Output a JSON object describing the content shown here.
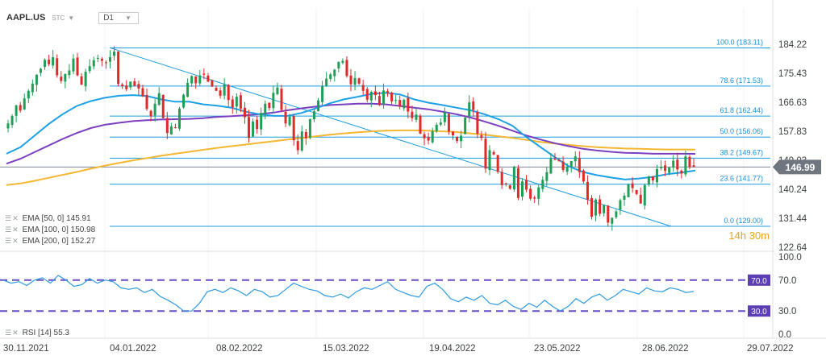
{
  "header": {
    "symbol": "AAPL.US",
    "type": "STC",
    "timeframe": "D1"
  },
  "indicators": [
    {
      "label": "EMA [50, 0] 145.91",
      "color": "#1ea0e6"
    },
    {
      "label": "EMA [100, 0] 150.98",
      "color": "#7b3fbf"
    },
    {
      "label": "EMA [200, 0] 152.27",
      "color": "#f5b731"
    }
  ],
  "rsi_label": "RSI [14] 55.3",
  "countdown": "14h 30m",
  "chart_data": {
    "type": "candlestick",
    "price_axis": {
      "ticks": [
        "184.22",
        "175.43",
        "166.63",
        "157.83",
        "149.03",
        "140.24",
        "131.44",
        "122.64"
      ]
    },
    "current_price": "146.99",
    "fib_levels": [
      {
        "label": "100.0 (183.11)",
        "value": 183.11
      },
      {
        "label": "78.6 (171.53)",
        "value": 171.53
      },
      {
        "label": "61.8 (162.44)",
        "value": 162.44
      },
      {
        "label": "50.0 (156.06)",
        "value": 156.06
      },
      {
        "label": "38.2 (149.67)",
        "value": 149.67
      },
      {
        "label": "23.6 (141.77)",
        "value": 141.77
      },
      {
        "label": "0.0 (129.00)",
        "value": 129.0
      }
    ],
    "x_axis": {
      "labels": [
        "30.11.2021",
        "04.01.2022",
        "08.02.2022",
        "15.03.2022",
        "19.04.2022",
        "23.05.2022",
        "28.06.2022",
        "29.07.2022"
      ]
    },
    "candles_close_approx": [
      160.2,
      162.5,
      165.7,
      164.1,
      167.8,
      170.1,
      172.3,
      175.0,
      176.8,
      179.5,
      178.2,
      180.3,
      174.8,
      173.1,
      175.2,
      176.3,
      179.9,
      174.8,
      172.0,
      175.9,
      177.6,
      179.4,
      180.1,
      179.2,
      178.5,
      180.3,
      182.0,
      172.2,
      171.5,
      170.6,
      172.9,
      171.6,
      170.8,
      168.5,
      164.6,
      162.4,
      166.2,
      169.4,
      161.8,
      157.3,
      159.3,
      158.8,
      164.7,
      168.9,
      172.5,
      174.6,
      172.4,
      174.8,
      175.0,
      172.9,
      171.4,
      170.1,
      168.6,
      172.0,
      167.3,
      165.1,
      168.3,
      164.7,
      162.1,
      155.8,
      160.8,
      158.5,
      163.4,
      166.2,
      164.9,
      169.5,
      171.1,
      164.3,
      160.2,
      162.2,
      155.1,
      152.1,
      157.8,
      155.7,
      161.5,
      163.9,
      167.2,
      171.5,
      173.8,
      175.1,
      176.5,
      178.9,
      179.2,
      174.6,
      172.1,
      174.0,
      172.3,
      170.1,
      167.4,
      169.8,
      168.8,
      165.8,
      170.2,
      169.5,
      166.9,
      167.3,
      165.3,
      167.4,
      163.8,
      161.8,
      162.9,
      157.1,
      155.7,
      155.0,
      157.9,
      159.8,
      160.5,
      163.6,
      157.8,
      156.6,
      154.9,
      156.5,
      162.0,
      166.6,
      164.3,
      157.1,
      155.8,
      146.5,
      152.1,
      150.8,
      145.5,
      141.5,
      141.9,
      140.4,
      147.1,
      137.6,
      142.6,
      140.1,
      137.4,
      137.4,
      140.8,
      143.1,
      145.4,
      149.6,
      149.2,
      148.7,
      146.1,
      147.0,
      148.8,
      150.2,
      145.4,
      142.6,
      137.1,
      131.9,
      137.1,
      132.8,
      135.4,
      130.1,
      131.6,
      133.5,
      136.9,
      138.3,
      141.7,
      140.6,
      138.8,
      135.9,
      141.5,
      144.1,
      142.9,
      146.4,
      147.0,
      145.8,
      146.8,
      148.9,
      146.2,
      145.0,
      150.2,
      147.0,
      146.99
    ],
    "ema50_approx": [
      151.0,
      153.0,
      156.5,
      160.0,
      163.0,
      165.5,
      167.0,
      168.0,
      168.6,
      168.8,
      168.5,
      167.5,
      166.8,
      166.8,
      166.0,
      165.6,
      165.0,
      163.8,
      163.0,
      162.5,
      162.5,
      163.4,
      164.8,
      166.3,
      167.5,
      168.3,
      169.2,
      169.5,
      169.0,
      167.5,
      166.5,
      165.8,
      165.0,
      164.2,
      163.0,
      161.5,
      159.5,
      156.0,
      153.0,
      150.0,
      147.2,
      145.5,
      144.5,
      143.8,
      143.2,
      143.5,
      144.0,
      144.8,
      145.3,
      145.91
    ],
    "ema100_approx": [
      148.0,
      149.5,
      151.5,
      153.5,
      155.5,
      157.3,
      158.8,
      159.8,
      160.4,
      160.9,
      161.2,
      161.4,
      161.5,
      161.6,
      161.8,
      162.2,
      162.4,
      162.7,
      163.0,
      163.5,
      164.2,
      164.8,
      165.3,
      165.8,
      166.0,
      166.2,
      166.2,
      166.0,
      165.5,
      165.0,
      164.5,
      163.8,
      163.0,
      162.0,
      160.8,
      159.5,
      158.0,
      156.5,
      155.3,
      154.2,
      153.3,
      152.5,
      152.0,
      151.6,
      151.3,
      151.2,
      151.0,
      151.0,
      151.0,
      150.98
    ],
    "ema200_approx": [
      141.5,
      142.0,
      142.8,
      143.7,
      144.6,
      145.5,
      146.5,
      147.4,
      148.2,
      149.0,
      149.7,
      150.4,
      151.0,
      151.6,
      152.2,
      152.8,
      153.3,
      153.8,
      154.3,
      154.8,
      155.3,
      155.8,
      156.3,
      156.8,
      157.2,
      157.5,
      157.8,
      158.0,
      158.1,
      158.1,
      158.0,
      157.8,
      157.6,
      157.2,
      156.8,
      156.3,
      155.8,
      155.2,
      154.6,
      154.1,
      153.7,
      153.3,
      153.0,
      152.8,
      152.6,
      152.5,
      152.4,
      152.3,
      152.3,
      152.27
    ],
    "rsi": {
      "ticks": [
        "100.0",
        "70.0",
        "30.0",
        "0.0"
      ],
      "overbought_label": "70.0",
      "oversold_label": "30.0",
      "values_approx": [
        70,
        66,
        68,
        63,
        70,
        73,
        66,
        76,
        70,
        62,
        64,
        72,
        66,
        70,
        68,
        60,
        58,
        60,
        54,
        58,
        49,
        44,
        38,
        30,
        30,
        40,
        55,
        58,
        54,
        60,
        56,
        50,
        58,
        55,
        48,
        50,
        58,
        66,
        62,
        58,
        56,
        50,
        48,
        52,
        47,
        55,
        60,
        58,
        63,
        68,
        58,
        54,
        50,
        48,
        62,
        66,
        58,
        46,
        42,
        48,
        44,
        50,
        40,
        38,
        44,
        36,
        32,
        40,
        35,
        44,
        36,
        30,
        36,
        46,
        40,
        48,
        52,
        44,
        50,
        58,
        55,
        52,
        60,
        56,
        55,
        60,
        58,
        54,
        55.3
      ]
    }
  }
}
